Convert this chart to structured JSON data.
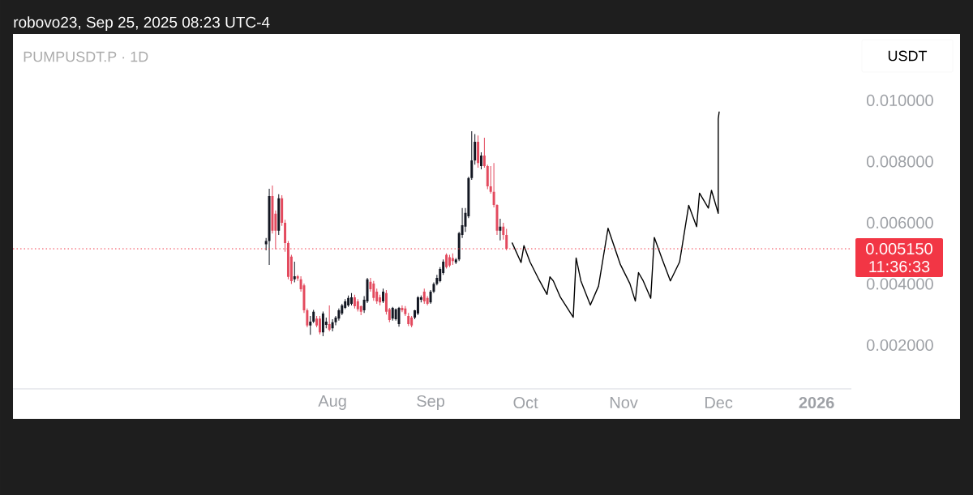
{
  "chart_data": {
    "type": "candlestick",
    "title": "PUMPUSDT.P · 1D",
    "ylabel": "USDT",
    "annotations": [
      "robovo23, Sep 25, 2025 08:23 UTC-4",
      "11:36:33"
    ],
    "x": [
      "2025-07-11",
      "2025-07-12",
      "2025-07-13",
      "2025-07-14",
      "2025-07-15",
      "2025-07-16",
      "2025-07-17",
      "2025-07-18",
      "2025-07-19",
      "2025-07-20",
      "2025-07-21",
      "2025-07-22",
      "2025-07-23",
      "2025-07-24",
      "2025-07-25",
      "2025-07-26",
      "2025-07-27",
      "2025-07-28",
      "2025-07-29",
      "2025-07-30",
      "2025-07-31",
      "2025-08-01",
      "2025-08-02",
      "2025-08-03",
      "2025-08-04",
      "2025-08-05",
      "2025-08-06",
      "2025-08-07",
      "2025-08-08",
      "2025-08-09",
      "2025-08-10",
      "2025-08-11",
      "2025-08-12",
      "2025-08-13",
      "2025-08-14",
      "2025-08-15",
      "2025-08-16",
      "2025-08-17",
      "2025-08-18",
      "2025-08-19",
      "2025-08-20",
      "2025-08-21",
      "2025-08-22",
      "2025-08-23",
      "2025-08-24",
      "2025-08-25",
      "2025-08-26",
      "2025-08-27",
      "2025-08-28",
      "2025-08-29",
      "2025-08-30",
      "2025-08-31",
      "2025-09-01",
      "2025-09-02",
      "2025-09-03",
      "2025-09-04",
      "2025-09-05",
      "2025-09-06",
      "2025-09-07",
      "2025-09-08",
      "2025-09-09",
      "2025-09-10",
      "2025-09-11",
      "2025-09-12",
      "2025-09-13",
      "2025-09-14",
      "2025-09-15",
      "2025-09-16",
      "2025-09-17",
      "2025-09-18",
      "2025-09-19",
      "2025-09-20",
      "2025-09-21",
      "2025-09-22",
      "2025-09-23",
      "2025-09-24",
      "2025-09-25"
    ],
    "ohlc": [
      [
        0.0053,
        0.0055,
        0.0051,
        0.0054
      ],
      [
        0.0054,
        0.00711,
        0.00462,
        0.00687
      ],
      [
        0.00687,
        0.00722,
        0.00565,
        0.00574
      ],
      [
        0.0063,
        0.0064,
        0.00513,
        0.00574
      ],
      [
        0.00574,
        0.00693,
        0.0056,
        0.0068
      ],
      [
        0.0068,
        0.0069,
        0.0059,
        0.006
      ],
      [
        0.006,
        0.0061,
        0.00505,
        0.00534
      ],
      [
        0.00534,
        0.0054,
        0.00415,
        0.00423
      ],
      [
        0.00489,
        0.00495,
        0.004,
        0.00409
      ],
      [
        0.00415,
        0.00473,
        0.00405,
        0.00425
      ],
      [
        0.00425,
        0.0043,
        0.0041,
        0.00418
      ],
      [
        0.00415,
        0.00425,
        0.00375,
        0.00383
      ],
      [
        0.00395,
        0.00401,
        0.00305,
        0.00314
      ],
      [
        0.00314,
        0.0032,
        0.00258,
        0.00264
      ],
      [
        0.00264,
        0.00295,
        0.00234,
        0.00277
      ],
      [
        0.00277,
        0.00315,
        0.00272,
        0.00309
      ],
      [
        0.00287,
        0.00295,
        0.00258,
        0.00264
      ],
      [
        0.00287,
        0.00295,
        0.00235,
        0.00242
      ],
      [
        0.00242,
        0.0031,
        0.00229,
        0.00303
      ],
      [
        0.00266,
        0.0029,
        0.00255,
        0.00277
      ],
      [
        0.00269,
        0.0033,
        0.00245,
        0.0025
      ],
      [
        0.00255,
        0.00285,
        0.00245,
        0.00275
      ],
      [
        0.00275,
        0.00295,
        0.00265,
        0.0029
      ],
      [
        0.00287,
        0.0032,
        0.0028,
        0.00314
      ],
      [
        0.00303,
        0.00335,
        0.00298,
        0.0033
      ],
      [
        0.00322,
        0.0035,
        0.00318,
        0.00343
      ],
      [
        0.0033,
        0.00362,
        0.00325,
        0.00354
      ],
      [
        0.00335,
        0.0037,
        0.0033,
        0.00356
      ],
      [
        0.00356,
        0.00365,
        0.0032,
        0.00327
      ],
      [
        0.00343,
        0.0035,
        0.0031,
        0.00317
      ],
      [
        0.00327,
        0.0033,
        0.00298,
        0.00309
      ],
      [
        0.00314,
        0.0036,
        0.00305,
        0.00348
      ],
      [
        0.00343,
        0.0042,
        0.00338,
        0.00415
      ],
      [
        0.00407,
        0.0042,
        0.00375,
        0.00383
      ],
      [
        0.00401,
        0.0041,
        0.00345,
        0.00354
      ],
      [
        0.00375,
        0.00385,
        0.00335,
        0.00343
      ],
      [
        0.00356,
        0.00365,
        0.0033,
        0.0034
      ],
      [
        0.00343,
        0.00385,
        0.00338,
        0.00375
      ],
      [
        0.0037,
        0.0038,
        0.003,
        0.00309
      ],
      [
        0.00317,
        0.00322,
        0.00275,
        0.00282
      ],
      [
        0.00287,
        0.00325,
        0.0028,
        0.00322
      ],
      [
        0.00285,
        0.0032,
        0.0028,
        0.00317
      ],
      [
        0.00269,
        0.00325,
        0.0026,
        0.00322
      ],
      [
        0.00322,
        0.0033,
        0.00308,
        0.00314
      ],
      [
        0.0032,
        0.00328,
        0.00295,
        0.00301
      ],
      [
        0.00295,
        0.00305,
        0.00262,
        0.00269
      ],
      [
        0.0029,
        0.00295,
        0.00258,
        0.00264
      ],
      [
        0.0029,
        0.00315,
        0.00285,
        0.00314
      ],
      [
        0.00303,
        0.0036,
        0.00298,
        0.00356
      ],
      [
        0.00348,
        0.00362,
        0.0034,
        0.00356
      ],
      [
        0.00375,
        0.00385,
        0.00335,
        0.00343
      ],
      [
        0.00354,
        0.0036,
        0.0033,
        0.00335
      ],
      [
        0.0034,
        0.0038,
        0.00335,
        0.00375
      ],
      [
        0.00375,
        0.00405,
        0.0037,
        0.004
      ],
      [
        0.004,
        0.0043,
        0.00395,
        0.0042
      ],
      [
        0.00409,
        0.00455,
        0.00405,
        0.00449
      ],
      [
        0.00436,
        0.0048,
        0.0043,
        0.00473
      ],
      [
        0.00495,
        0.005,
        0.0045,
        0.00455
      ],
      [
        0.00487,
        0.00495,
        0.00455,
        0.0046
      ],
      [
        0.00485,
        0.005,
        0.00462,
        0.00475
      ],
      [
        0.0047,
        0.00485,
        0.00465,
        0.0048
      ],
      [
        0.0048,
        0.0057,
        0.00475,
        0.00566
      ],
      [
        0.0056,
        0.00648,
        0.0055,
        0.00592
      ],
      [
        0.00587,
        0.00648,
        0.0057,
        0.00632
      ],
      [
        0.00621,
        0.0075,
        0.00615,
        0.00746
      ],
      [
        0.00746,
        0.00899,
        0.0074,
        0.00804
      ],
      [
        0.00804,
        0.0089,
        0.0079,
        0.00865
      ],
      [
        0.00865,
        0.00885,
        0.0078,
        0.00795
      ],
      [
        0.00785,
        0.0083,
        0.00775,
        0.0082
      ],
      [
        0.0082,
        0.00878,
        0.0078,
        0.00785
      ],
      [
        0.00785,
        0.0079,
        0.0071,
        0.00719
      ],
      [
        0.00719,
        0.00785,
        0.00695,
        0.00701
      ],
      [
        0.00701,
        0.00795,
        0.0065,
        0.00658
      ],
      [
        0.00658,
        0.0066,
        0.0056,
        0.00574
      ],
      [
        0.00574,
        0.00613,
        0.00542,
        0.00587
      ],
      [
        0.00587,
        0.006,
        0.00545,
        0.0056
      ],
      [
        0.0056,
        0.0058,
        0.0051,
        0.00515
      ]
    ],
    "colors": [
      "#131722",
      "#131722",
      "#e34a5e",
      "#e34a5e",
      "#131722",
      "#e34a5e",
      "#e34a5e",
      "#e34a5e",
      "#e34a5e",
      "#131722",
      "#e34a5e",
      "#e34a5e",
      "#e34a5e",
      "#e34a5e",
      "#131722",
      "#131722",
      "#e34a5e",
      "#e34a5e",
      "#131722",
      "#131722",
      "#e34a5e",
      "#131722",
      "#131722",
      "#131722",
      "#131722",
      "#131722",
      "#131722",
      "#131722",
      "#e34a5e",
      "#e34a5e",
      "#e34a5e",
      "#131722",
      "#131722",
      "#e34a5e",
      "#e34a5e",
      "#e34a5e",
      "#e34a5e",
      "#131722",
      "#e34a5e",
      "#e34a5e",
      "#131722",
      "#131722",
      "#131722",
      "#e34a5e",
      "#e34a5e",
      "#e34a5e",
      "#e34a5e",
      "#131722",
      "#131722",
      "#131722",
      "#e34a5e",
      "#e34a5e",
      "#131722",
      "#131722",
      "#131722",
      "#131722",
      "#131722",
      "#e34a5e",
      "#e34a5e",
      "#e34a5e",
      "#131722",
      "#131722",
      "#131722",
      "#131722",
      "#131722",
      "#131722",
      "#131722",
      "#e34a5e",
      "#131722",
      "#e34a5e",
      "#e34a5e",
      "#e34a5e",
      "#e34a5e",
      "#e34a5e",
      "#131722",
      "#e34a5e",
      "#e34a5e"
    ],
    "series": [
      {
        "type": "line",
        "color": "#000000",
        "x": [
          "2025-09-26T19:00",
          "2025-09-29T14:00",
          "2025-09-30T12:00",
          "2025-10-02T10:00",
          "2025-10-05T00:00",
          "2025-10-07T19:00",
          "2025-10-08T17:00",
          "2025-10-09T19:00",
          "2025-10-12T00:00",
          "2025-10-16T02:00",
          "2025-10-17T00:00",
          "2025-10-18T12:00",
          "2025-10-21T12:00",
          "2025-10-24T02:00",
          "2025-10-27T02:00",
          "2025-10-31T00:00",
          "2025-11-03T00:00",
          "2025-11-04T17:00",
          "2025-11-05T17:00",
          "2025-11-07T05:00",
          "2025-11-09T14:00",
          "2025-11-10T17:00",
          "2025-11-13T05:00",
          "2025-11-15T19:00",
          "2025-11-18T17:00",
          "2025-11-21T14:00",
          "2025-11-24T02:00",
          "2025-11-25T00:00",
          "2025-11-27T19:00",
          "2025-11-28T19:00",
          "2025-11-30T22:00",
          "2025-11-30T22:00",
          "2025-12-01T05:00"
        ],
        "values": [
          0.00534,
          0.0047,
          0.00525,
          0.00472,
          0.00419,
          0.00366,
          0.00423,
          0.0041,
          0.00357,
          0.00291,
          0.00485,
          0.0041,
          0.00331,
          0.00393,
          0.00582,
          0.00463,
          0.00401,
          0.00344,
          0.00437,
          0.0041,
          0.00353,
          0.00552,
          0.00481,
          0.0041,
          0.00472,
          0.00657,
          0.00587,
          0.00697,
          0.00648,
          0.00706,
          0.00631,
          0.0094,
          0.00962
        ]
      }
    ],
    "ref_lines": [
      {
        "axis": "y",
        "value": 0.00515,
        "label": "0.005150",
        "color": "#f23645",
        "line_style": "dotted"
      }
    ],
    "xlim": [
      "2025-04-22",
      "2026-01-12"
    ],
    "ylim": [
      0.00057,
      0.01217
    ],
    "xticks": [
      {
        "value": "2025-08-01",
        "label": "Aug"
      },
      {
        "value": "2025-09-01",
        "label": "Sep"
      },
      {
        "value": "2025-10-01",
        "label": "Oct"
      },
      {
        "value": "2025-11-01",
        "label": "Nov"
      },
      {
        "value": "2025-12-01",
        "label": "Dec"
      },
      {
        "value": "2026-01-01",
        "label": "2026"
      }
    ],
    "yticks": [
      {
        "value": 0.002,
        "label": "0.002000"
      },
      {
        "value": 0.004,
        "label": "0.004000"
      },
      {
        "value": 0.006,
        "label": "0.006000"
      },
      {
        "value": 0.008,
        "label": "0.008000"
      },
      {
        "value": 0.01,
        "label": "0.010000"
      }
    ]
  }
}
